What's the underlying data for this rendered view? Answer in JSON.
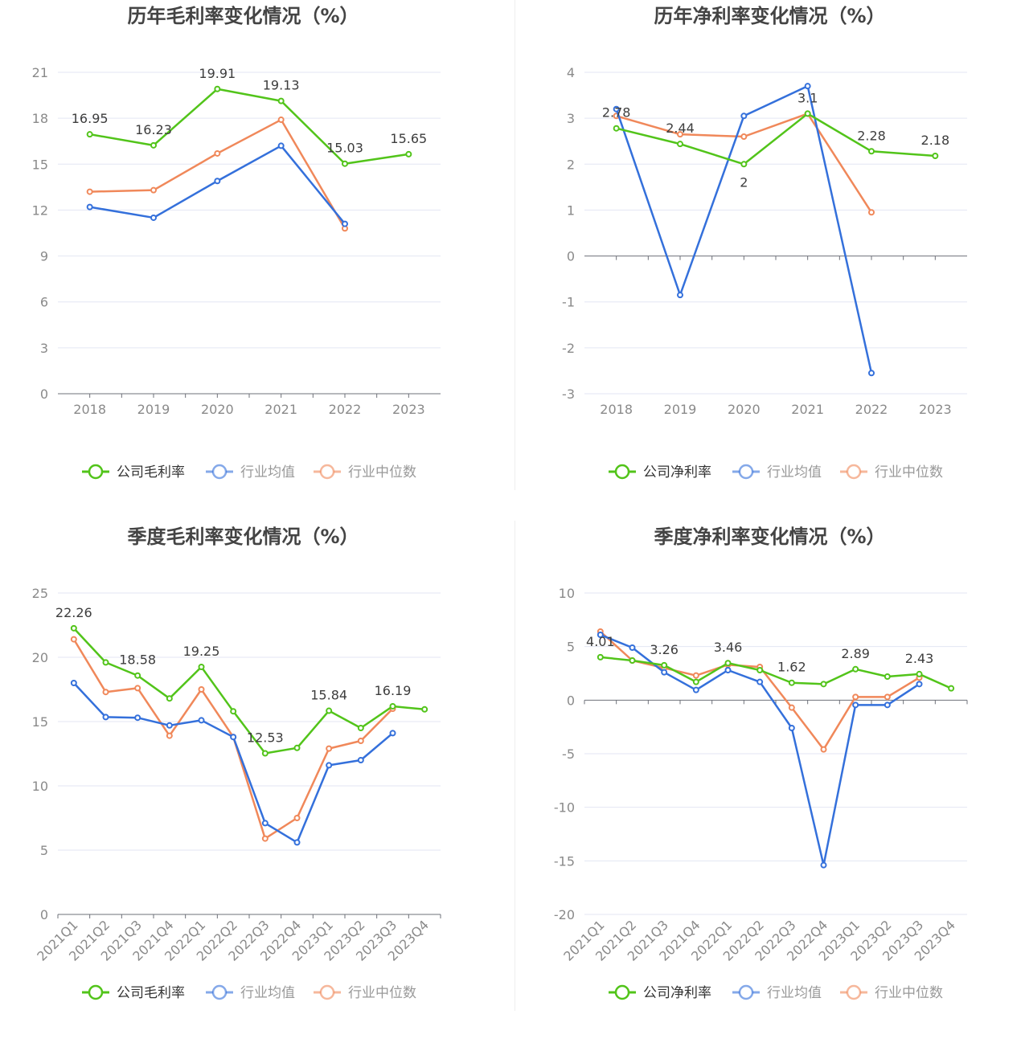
{
  "colors": {
    "company": "#52c41a",
    "avg": "#3470db",
    "median": "#f0885a",
    "grid": "#e3e6f3",
    "axis": "#6e7079",
    "legend_inactive_text": "#999999",
    "legend_active_text": "#333333"
  },
  "chart_data": [
    {
      "id": "annual-gross",
      "type": "line",
      "title": "历年毛利率变化情况（%）",
      "categories": [
        "2018",
        "2019",
        "2020",
        "2021",
        "2022",
        "2023"
      ],
      "ylim": [
        0,
        21
      ],
      "yticks": [
        0,
        3,
        6,
        9,
        12,
        15,
        18,
        21
      ],
      "grid": true,
      "rotate_x_labels": false,
      "legend_position": "bottom",
      "series": [
        {
          "name": "公司毛利率",
          "color_key": "company",
          "values": [
            16.95,
            16.23,
            19.91,
            19.13,
            15.03,
            15.65
          ],
          "labels": [
            "16.95",
            "16.23",
            "19.91",
            "19.13",
            "15.03",
            "15.65"
          ]
        },
        {
          "name": "行业均值",
          "color_key": "avg",
          "values": [
            12.2,
            11.5,
            13.9,
            16.2,
            11.1,
            null
          ],
          "labels": []
        },
        {
          "name": "行业中位数",
          "color_key": "median",
          "values": [
            13.2,
            13.3,
            15.7,
            17.9,
            10.8,
            null
          ],
          "labels": []
        }
      ]
    },
    {
      "id": "annual-net",
      "type": "line",
      "title": "历年净利率变化情况（%）",
      "categories": [
        "2018",
        "2019",
        "2020",
        "2021",
        "2022",
        "2023"
      ],
      "ylim": [
        -3,
        4
      ],
      "yticks": [
        -3,
        -2,
        -1,
        0,
        1,
        2,
        3,
        4
      ],
      "grid": true,
      "rotate_x_labels": false,
      "legend_position": "bottom",
      "series": [
        {
          "name": "公司净利率",
          "color_key": "company",
          "values": [
            2.78,
            2.44,
            2,
            3.1,
            2.28,
            2.18
          ],
          "labels": [
            "2.78",
            "2.44",
            "2",
            "3.1",
            "2.28",
            "2.18"
          ]
        },
        {
          "name": "行业均值",
          "color_key": "avg",
          "values": [
            3.2,
            -0.85,
            3.05,
            3.7,
            -2.55,
            null
          ],
          "labels": []
        },
        {
          "name": "行业中位数",
          "color_key": "median",
          "values": [
            3.05,
            2.65,
            2.6,
            3.1,
            0.95,
            null
          ],
          "labels": []
        }
      ]
    },
    {
      "id": "quarterly-gross",
      "type": "line",
      "title": "季度毛利率变化情况（%）",
      "categories": [
        "2021Q1",
        "2021Q2",
        "2021Q3",
        "2021Q4",
        "2022Q1",
        "2022Q2",
        "2022Q3",
        "2022Q4",
        "2023Q1",
        "2023Q2",
        "2023Q3",
        "2023Q4"
      ],
      "ylim": [
        0,
        25
      ],
      "yticks": [
        0,
        5,
        10,
        15,
        20,
        25
      ],
      "grid": true,
      "rotate_x_labels": true,
      "legend_position": "bottom",
      "series": [
        {
          "name": "公司毛利率",
          "color_key": "company",
          "values": [
            22.26,
            19.6,
            18.58,
            16.8,
            19.25,
            15.8,
            12.53,
            12.95,
            15.84,
            14.5,
            16.19,
            15.95
          ],
          "labels": [
            "22.26",
            "",
            "18.58",
            "",
            "19.25",
            "",
            "12.53",
            "",
            "15.84",
            "",
            "16.19",
            ""
          ]
        },
        {
          "name": "行业均值",
          "color_key": "avg",
          "values": [
            18,
            15.35,
            15.3,
            14.7,
            15.1,
            13.8,
            7.1,
            5.6,
            11.6,
            12,
            14.1,
            null
          ],
          "labels": []
        },
        {
          "name": "行业中位数",
          "color_key": "median",
          "values": [
            21.4,
            17.3,
            17.6,
            13.9,
            17.5,
            13.8,
            5.9,
            7.5,
            12.9,
            13.5,
            16,
            null
          ],
          "labels": []
        }
      ]
    },
    {
      "id": "quarterly-net",
      "type": "line",
      "title": "季度净利率变化情况（%）",
      "categories": [
        "2021Q1",
        "2021Q2",
        "2021Q3",
        "2021Q4",
        "2022Q1",
        "2022Q2",
        "2022Q3",
        "2022Q4",
        "2023Q1",
        "2023Q2",
        "2023Q3",
        "2023Q4"
      ],
      "ylim": [
        -20,
        10
      ],
      "yticks": [
        -20,
        -15,
        -10,
        -5,
        0,
        5,
        10
      ],
      "grid": true,
      "rotate_x_labels": true,
      "legend_position": "bottom",
      "series": [
        {
          "name": "公司净利率",
          "color_key": "company",
          "values": [
            4.01,
            3.7,
            3.26,
            1.7,
            3.46,
            2.8,
            1.62,
            1.5,
            2.89,
            2.2,
            2.43,
            1.1
          ],
          "labels": [
            "4.01",
            "",
            "3.26",
            "",
            "3.46",
            "",
            "1.62",
            "",
            "2.89",
            "",
            "2.43",
            ""
          ]
        },
        {
          "name": "行业均值",
          "color_key": "avg",
          "values": [
            6.1,
            4.9,
            2.6,
            0.95,
            2.8,
            1.7,
            -2.6,
            -15.4,
            -0.45,
            -0.45,
            1.5,
            null
          ],
          "labels": []
        },
        {
          "name": "行业中位数",
          "color_key": "median",
          "values": [
            6.4,
            3.7,
            3.0,
            2.3,
            3.3,
            3.1,
            -0.7,
            -4.6,
            0.3,
            0.3,
            2.1,
            null
          ],
          "labels": []
        }
      ]
    }
  ]
}
